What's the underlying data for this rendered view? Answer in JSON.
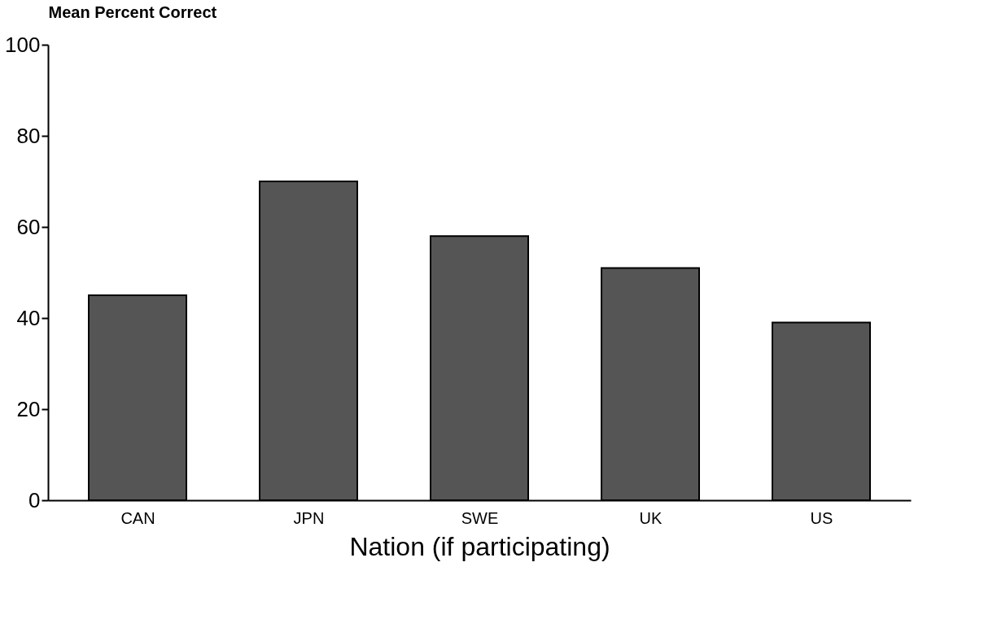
{
  "chart_data": {
    "type": "bar",
    "ylabel": "Mean Percent Correct",
    "xlabel": "Nation (if participating)",
    "categories": [
      "CAN",
      "JPN",
      "SWE",
      "UK",
      "US"
    ],
    "values": [
      45,
      70,
      58,
      51,
      39
    ],
    "color": "#555555",
    "ylim": [
      0,
      100
    ],
    "yticks": [
      0,
      20,
      40,
      60,
      80,
      100
    ],
    "grid": false
  }
}
